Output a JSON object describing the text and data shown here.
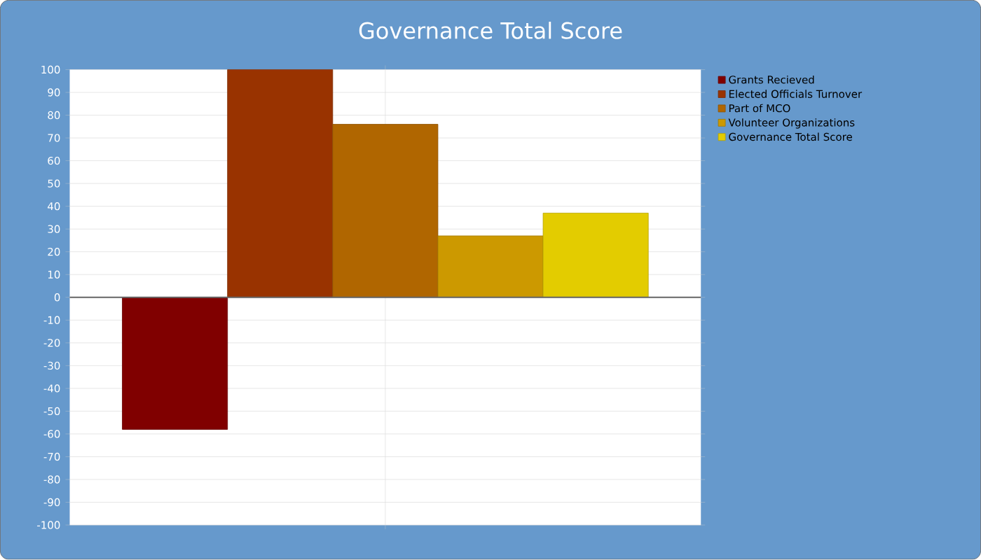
{
  "chart_data": {
    "type": "bar",
    "title": "Governance Total Score",
    "categories": [
      null
    ],
    "series": [
      {
        "name": "Grants Recieved",
        "color": "#800000",
        "values": [
          -58
        ]
      },
      {
        "name": "Elected Officials Turnover",
        "color": "#993300",
        "values": [
          100
        ]
      },
      {
        "name": "Part of MCO",
        "color": "#b06600",
        "values": [
          76
        ]
      },
      {
        "name": "Volunteer Organizations",
        "color": "#cc9900",
        "values": [
          27
        ]
      },
      {
        "name": "Governance Total Score",
        "color": "#e3cc00",
        "values": [
          37
        ]
      }
    ],
    "ylim": [
      -100,
      100
    ],
    "yticks": [
      -100,
      -90,
      -80,
      -70,
      -60,
      -50,
      -40,
      -30,
      -20,
      -10,
      0,
      10,
      20,
      30,
      40,
      50,
      60,
      70,
      80,
      90,
      100
    ],
    "grid": true,
    "legend": "right",
    "tick_labels": "y"
  }
}
